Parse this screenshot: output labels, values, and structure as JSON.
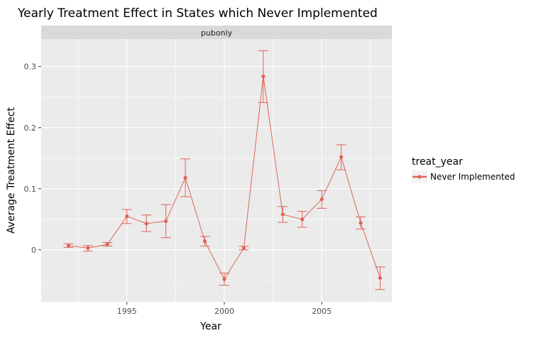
{
  "chart_data": {
    "type": "line",
    "title": "Yearly Treatment Effect in States which Never Implemented",
    "xlabel": "Year",
    "ylabel": "Average Treatment Effect",
    "facet": "pubonly",
    "xlim": [
      1990.6,
      2008.6
    ],
    "ylim": [
      -0.085,
      0.345
    ],
    "x_ticks": [
      1995,
      2000,
      2005
    ],
    "y_ticks": [
      0,
      0.1,
      0.2,
      0.3
    ],
    "y_tick_labels": [
      "0",
      "0.1",
      "0.2",
      "0.3"
    ],
    "x_minor": [
      1992.5,
      1997.5,
      2002.5,
      2007.5
    ],
    "y_minor": [
      -0.05,
      0.05,
      0.15,
      0.25
    ],
    "grid": true,
    "legend": {
      "title": "treat_year",
      "position": "right"
    },
    "series": [
      {
        "name": "Never Implemented",
        "color": "#e06458",
        "x": [
          1992,
          1993,
          1994,
          1995,
          1996,
          1997,
          1998,
          1999,
          2000,
          2001,
          2002,
          2003,
          2004,
          2005,
          2006,
          2007,
          2008
        ],
        "y": [
          0.007,
          0.003,
          0.009,
          0.055,
          0.043,
          0.047,
          0.118,
          0.014,
          -0.048,
          0.003,
          0.284,
          0.058,
          0.05,
          0.083,
          0.152,
          0.044,
          -0.046
        ],
        "ymin": [
          0.004,
          -0.002,
          0.006,
          0.043,
          0.03,
          0.02,
          0.087,
          0.006,
          -0.058,
          0.0,
          0.241,
          0.045,
          0.037,
          0.068,
          0.131,
          0.034,
          -0.065
        ],
        "ymax": [
          0.01,
          0.007,
          0.012,
          0.066,
          0.057,
          0.074,
          0.149,
          0.022,
          -0.038,
          0.006,
          0.326,
          0.071,
          0.063,
          0.097,
          0.172,
          0.054,
          -0.028
        ]
      }
    ]
  }
}
